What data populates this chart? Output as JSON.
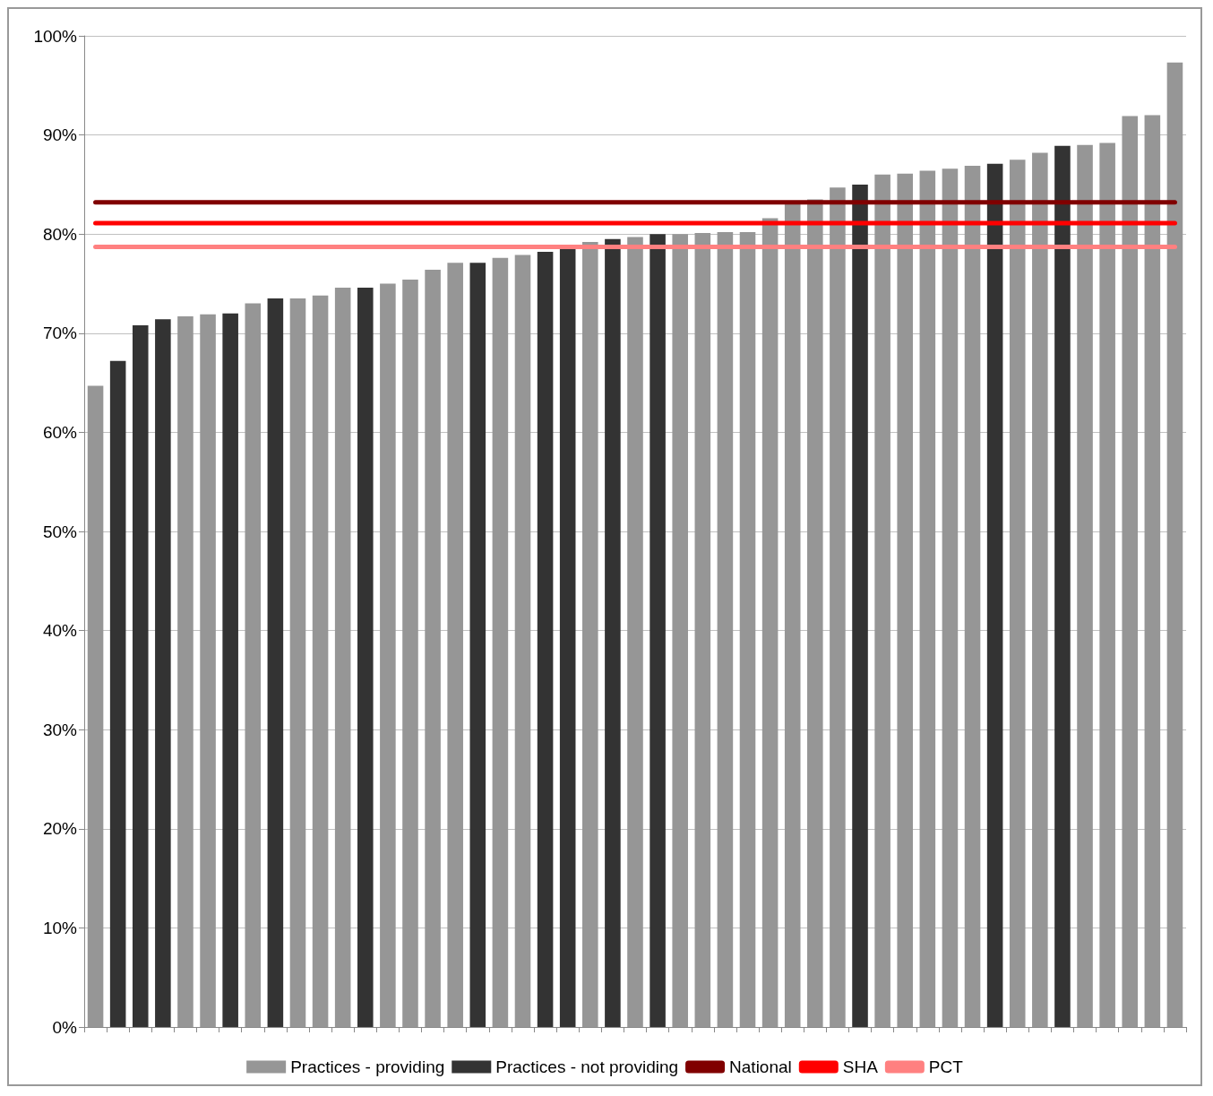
{
  "chart_data": {
    "type": "bar",
    "categories": [
      null,
      null,
      null,
      null,
      null,
      null,
      null,
      null,
      null,
      null,
      null,
      null,
      null,
      null,
      null,
      null,
      null,
      null,
      null,
      null,
      null,
      null,
      null,
      null,
      null,
      null,
      null,
      null,
      null,
      null,
      null,
      null,
      null,
      null,
      null,
      null,
      null,
      null,
      null,
      null,
      null,
      null,
      null,
      null,
      null,
      null,
      null,
      null,
      null
    ],
    "series": [
      {
        "name": "Practices - providing",
        "color": "#969696",
        "values": [
          64.7,
          null,
          null,
          null,
          71.7,
          71.9,
          null,
          73.0,
          null,
          73.5,
          73.8,
          74.6,
          null,
          75.0,
          75.4,
          76.4,
          77.1,
          null,
          77.6,
          77.9,
          null,
          null,
          79.2,
          null,
          79.7,
          null,
          80.0,
          80.1,
          80.2,
          80.2,
          81.6,
          83.2,
          83.5,
          84.7,
          null,
          86.0,
          86.1,
          86.4,
          86.6,
          86.9,
          null,
          87.5,
          88.2,
          null,
          89.0,
          89.2,
          91.9,
          92.0,
          97.3
        ]
      },
      {
        "name": "Practices - not providing",
        "color": "#333333",
        "values": [
          null,
          67.2,
          70.8,
          71.4,
          null,
          null,
          72.0,
          null,
          73.5,
          null,
          null,
          null,
          74.6,
          null,
          null,
          null,
          null,
          77.1,
          null,
          null,
          78.2,
          78.5,
          null,
          79.5,
          null,
          80.0,
          null,
          null,
          null,
          null,
          null,
          null,
          null,
          null,
          85.0,
          null,
          null,
          null,
          null,
          null,
          87.1,
          null,
          null,
          88.9,
          null,
          null,
          null,
          null,
          null
        ]
      },
      {
        "name": "National",
        "type": "line",
        "color": "#800000",
        "values": [
          83.2,
          83.2,
          83.2,
          83.2,
          83.2,
          83.2,
          83.2,
          83.2,
          83.2,
          83.2,
          83.2,
          83.2,
          83.2,
          83.2,
          83.2,
          83.2,
          83.2,
          83.2,
          83.2,
          83.2,
          83.2,
          83.2,
          83.2,
          83.2,
          83.2,
          83.2,
          83.2,
          83.2,
          83.2,
          83.2,
          83.2,
          83.2,
          83.2,
          83.2,
          83.2,
          83.2,
          83.2,
          83.2,
          83.2,
          83.2,
          83.2,
          83.2,
          83.2,
          83.2,
          83.2,
          83.2,
          83.2,
          83.2,
          83.2
        ]
      },
      {
        "name": "SHA",
        "type": "line",
        "color": "#ff0000",
        "values": [
          81.1,
          81.1,
          81.1,
          81.1,
          81.1,
          81.1,
          81.1,
          81.1,
          81.1,
          81.1,
          81.1,
          81.1,
          81.1,
          81.1,
          81.1,
          81.1,
          81.1,
          81.1,
          81.1,
          81.1,
          81.1,
          81.1,
          81.1,
          81.1,
          81.1,
          81.1,
          81.1,
          81.1,
          81.1,
          81.1,
          81.1,
          81.1,
          81.1,
          81.1,
          81.1,
          81.1,
          81.1,
          81.1,
          81.1,
          81.1,
          81.1,
          81.1,
          81.1,
          81.1,
          81.1,
          81.1,
          81.1,
          81.1,
          81.1
        ]
      },
      {
        "name": "PCT",
        "type": "line",
        "color": "#ff8080",
        "values": [
          78.7,
          78.7,
          78.7,
          78.7,
          78.7,
          78.7,
          78.7,
          78.7,
          78.7,
          78.7,
          78.7,
          78.7,
          78.7,
          78.7,
          78.7,
          78.7,
          78.7,
          78.7,
          78.7,
          78.7,
          78.7,
          78.7,
          78.7,
          78.7,
          78.7,
          78.7,
          78.7,
          78.7,
          78.7,
          78.7,
          78.7,
          78.7,
          78.7,
          78.7,
          78.7,
          78.7,
          78.7,
          78.7,
          78.7,
          78.7,
          78.7,
          78.7,
          78.7,
          78.7,
          78.7,
          78.7,
          78.7,
          78.7,
          78.7
        ]
      }
    ],
    "ylim": [
      0,
      100
    ],
    "yticks": [
      {
        "value": 0,
        "label": "0%"
      },
      {
        "value": 10,
        "label": "10%"
      },
      {
        "value": 20,
        "label": "20%"
      },
      {
        "value": 30,
        "label": "30%"
      },
      {
        "value": 40,
        "label": "40%"
      },
      {
        "value": 50,
        "label": "50%"
      },
      {
        "value": 60,
        "label": "60%"
      },
      {
        "value": 70,
        "label": "70%"
      },
      {
        "value": 80,
        "label": "80%"
      },
      {
        "value": 90,
        "label": "90%"
      },
      {
        "value": 100,
        "label": "100%"
      }
    ],
    "grid": "y",
    "legend": "bottom",
    "marker": "none",
    "line_style": "solid"
  }
}
